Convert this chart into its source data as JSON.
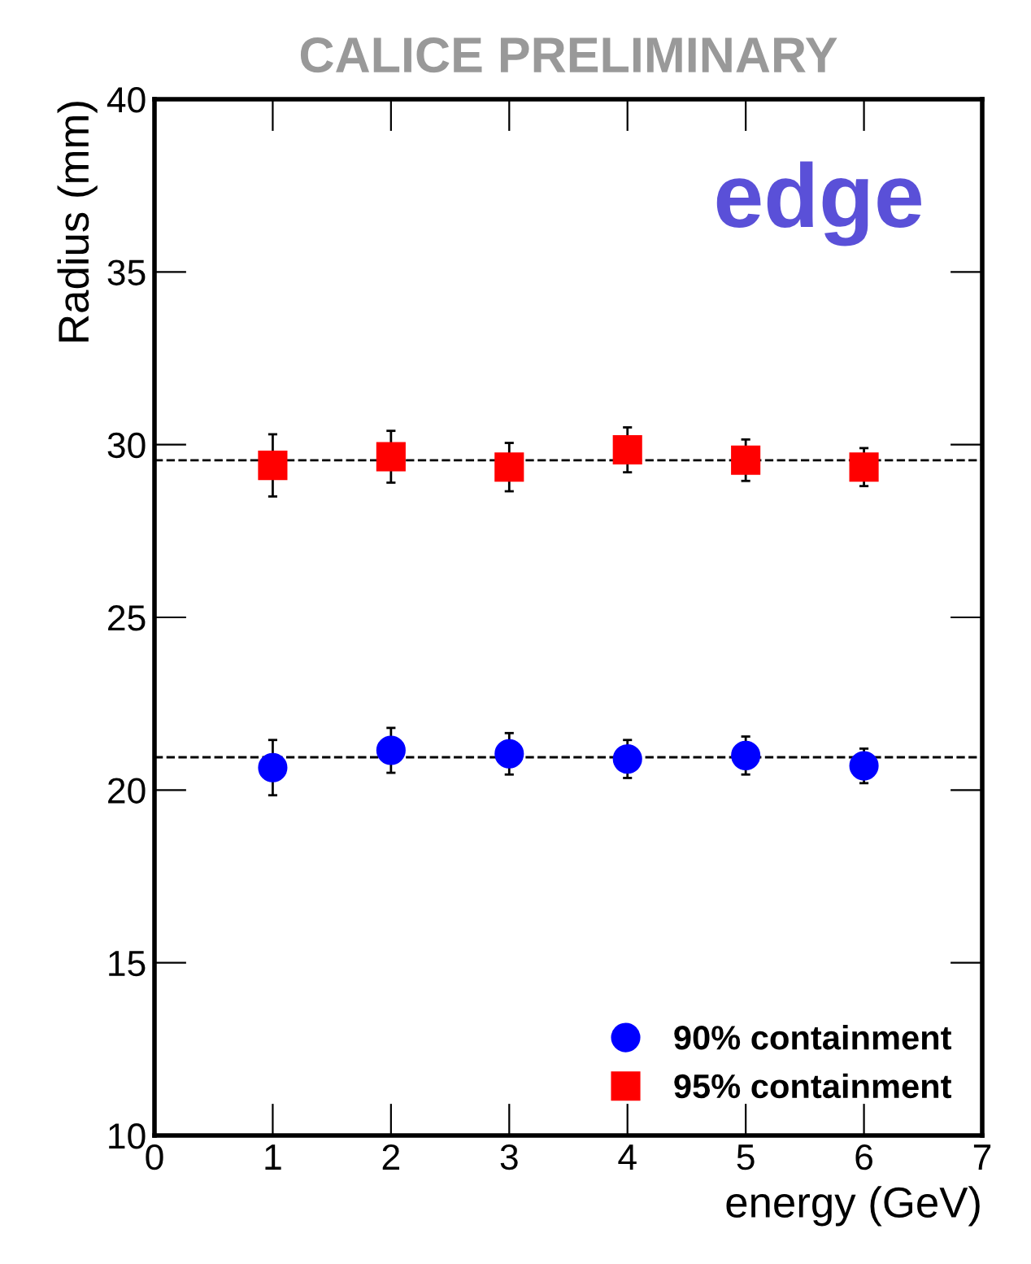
{
  "chart_data": {
    "type": "scatter",
    "title": "CALICE PRELIMINARY",
    "xlabel": "energy (GeV)",
    "ylabel": "Radius (mm)",
    "annotations": [
      "edge"
    ],
    "x": [
      1,
      2,
      3,
      4,
      5,
      6
    ],
    "series": [
      {
        "name": "90% containment",
        "color": "#0000ff",
        "marker": "circle",
        "values": [
          20.65,
          21.15,
          21.05,
          20.9,
          21.0,
          20.7
        ],
        "errors": [
          0.8,
          0.65,
          0.6,
          0.55,
          0.55,
          0.5
        ]
      },
      {
        "name": "95% containment",
        "color": "#ff0000",
        "marker": "square",
        "values": [
          29.4,
          29.65,
          29.35,
          29.85,
          29.55,
          29.35
        ],
        "errors": [
          0.9,
          0.75,
          0.7,
          0.65,
          0.6,
          0.55
        ]
      }
    ],
    "ref_lines": [
      {
        "axis": "y",
        "value": 20.95,
        "line_style": "dashed"
      },
      {
        "axis": "y",
        "value": 29.55,
        "line_style": "dashed"
      }
    ],
    "xlim": [
      0,
      7
    ],
    "xticks": [
      0,
      1,
      2,
      3,
      4,
      5,
      6,
      7
    ],
    "ylim": [
      10,
      40
    ],
    "yticks": [
      10,
      15,
      20,
      25,
      30,
      35,
      40
    ],
    "grid": false,
    "legend": "bottom right"
  }
}
